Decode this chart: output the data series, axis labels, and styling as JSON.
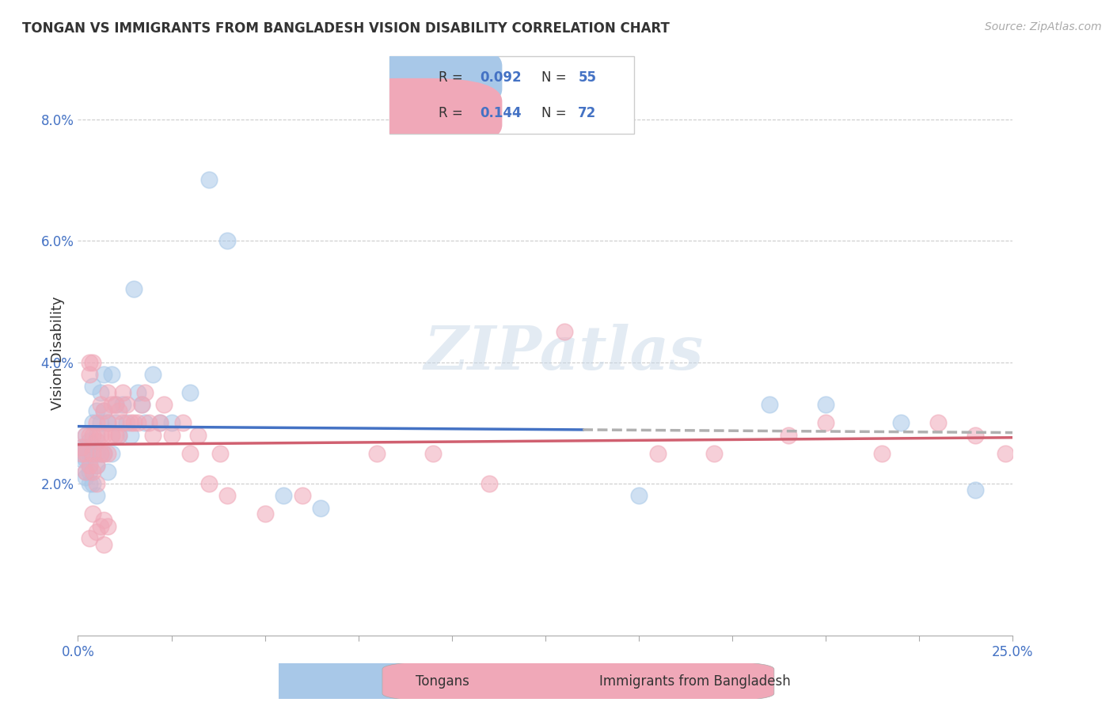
{
  "title": "TONGAN VS IMMIGRANTS FROM BANGLADESH VISION DISABILITY CORRELATION CHART",
  "source": "Source: ZipAtlas.com",
  "ylabel": "Vision Disability",
  "y_ticks": [
    0.0,
    0.02,
    0.04,
    0.06,
    0.08
  ],
  "y_tick_labels": [
    "",
    "2.0%",
    "4.0%",
    "6.0%",
    "8.0%"
  ],
  "x_range": [
    0.0,
    0.25
  ],
  "y_range": [
    -0.005,
    0.088
  ],
  "tongan_R": 0.092,
  "tongan_N": 55,
  "bangladesh_R": 0.144,
  "bangladesh_N": 72,
  "tongan_color": "#a8c8e8",
  "bangladesh_color": "#f0a8b8",
  "tongan_line_color": "#4472c4",
  "bangladesh_line_color": "#d06070",
  "dash_line_color": "#b0b0b0",
  "watermark": "ZIPatlas",
  "legend_label_1": "Tongans",
  "legend_label_2": "Immigrants from Bangladesh",
  "tongan_x": [
    0.001,
    0.001,
    0.001,
    0.002,
    0.002,
    0.002,
    0.002,
    0.002,
    0.003,
    0.003,
    0.003,
    0.003,
    0.003,
    0.004,
    0.004,
    0.004,
    0.004,
    0.005,
    0.005,
    0.005,
    0.005,
    0.005,
    0.006,
    0.006,
    0.006,
    0.007,
    0.007,
    0.007,
    0.008,
    0.008,
    0.009,
    0.009,
    0.01,
    0.01,
    0.011,
    0.012,
    0.013,
    0.014,
    0.015,
    0.016,
    0.017,
    0.018,
    0.02,
    0.022,
    0.025,
    0.03,
    0.035,
    0.04,
    0.055,
    0.065,
    0.15,
    0.185,
    0.2,
    0.22,
    0.24
  ],
  "tongan_y": [
    0.026,
    0.025,
    0.024,
    0.028,
    0.026,
    0.024,
    0.022,
    0.021,
    0.027,
    0.025,
    0.023,
    0.022,
    0.02,
    0.036,
    0.03,
    0.025,
    0.02,
    0.032,
    0.028,
    0.025,
    0.023,
    0.018,
    0.035,
    0.03,
    0.025,
    0.038,
    0.032,
    0.025,
    0.03,
    0.022,
    0.038,
    0.025,
    0.033,
    0.03,
    0.028,
    0.033,
    0.03,
    0.028,
    0.052,
    0.035,
    0.033,
    0.03,
    0.038,
    0.03,
    0.03,
    0.035,
    0.07,
    0.06,
    0.018,
    0.016,
    0.018,
    0.033,
    0.033,
    0.03,
    0.019
  ],
  "bangladesh_x": [
    0.001,
    0.001,
    0.002,
    0.002,
    0.002,
    0.003,
    0.003,
    0.003,
    0.003,
    0.004,
    0.004,
    0.004,
    0.004,
    0.005,
    0.005,
    0.005,
    0.005,
    0.006,
    0.006,
    0.006,
    0.007,
    0.007,
    0.007,
    0.008,
    0.008,
    0.008,
    0.009,
    0.009,
    0.01,
    0.01,
    0.011,
    0.011,
    0.012,
    0.012,
    0.013,
    0.014,
    0.015,
    0.016,
    0.017,
    0.018,
    0.019,
    0.02,
    0.022,
    0.023,
    0.025,
    0.028,
    0.03,
    0.032,
    0.035,
    0.038,
    0.04,
    0.05,
    0.06,
    0.08,
    0.095,
    0.11,
    0.13,
    0.155,
    0.17,
    0.19,
    0.2,
    0.215,
    0.23,
    0.24,
    0.248,
    0.005,
    0.006,
    0.007,
    0.007,
    0.008,
    0.004,
    0.003
  ],
  "bangladesh_y": [
    0.026,
    0.025,
    0.028,
    0.025,
    0.022,
    0.04,
    0.038,
    0.028,
    0.023,
    0.04,
    0.028,
    0.025,
    0.022,
    0.03,
    0.027,
    0.023,
    0.02,
    0.033,
    0.028,
    0.025,
    0.032,
    0.028,
    0.025,
    0.035,
    0.03,
    0.025,
    0.033,
    0.028,
    0.033,
    0.028,
    0.032,
    0.028,
    0.035,
    0.03,
    0.033,
    0.03,
    0.03,
    0.03,
    0.033,
    0.035,
    0.03,
    0.028,
    0.03,
    0.033,
    0.028,
    0.03,
    0.025,
    0.028,
    0.02,
    0.025,
    0.018,
    0.015,
    0.018,
    0.025,
    0.025,
    0.02,
    0.045,
    0.025,
    0.025,
    0.028,
    0.03,
    0.025,
    0.03,
    0.028,
    0.025,
    0.012,
    0.013,
    0.01,
    0.014,
    0.013,
    0.015,
    0.011
  ]
}
